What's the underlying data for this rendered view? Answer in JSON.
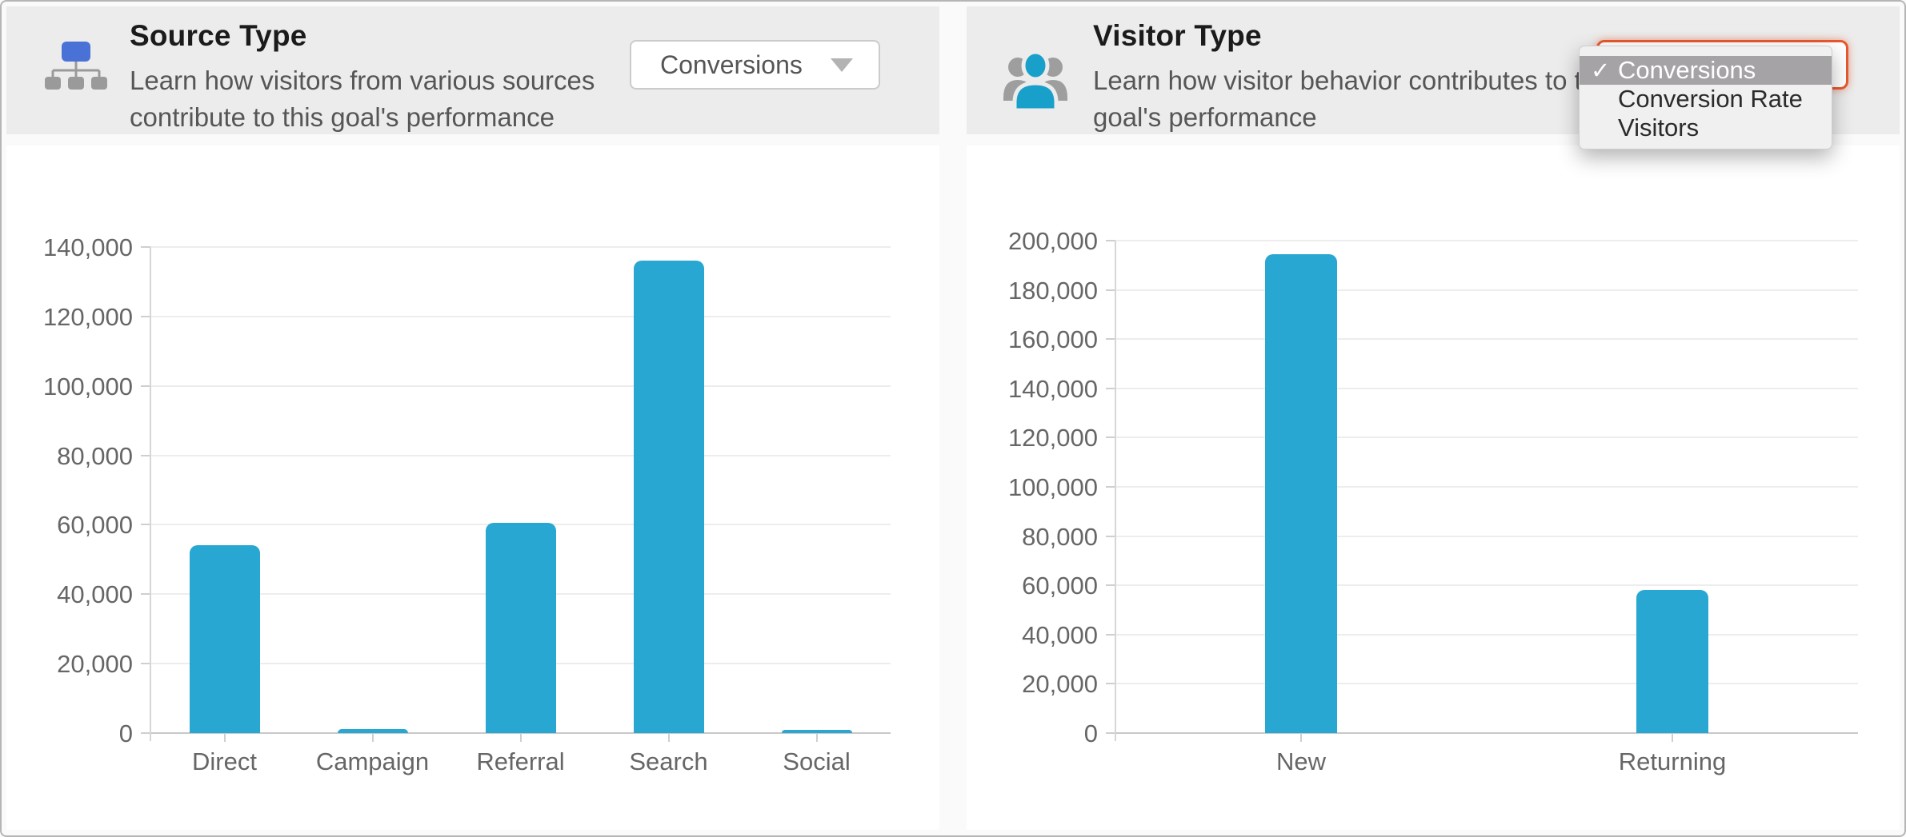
{
  "window": {
    "background": "#fafafa",
    "border_color": "#b5b5b5"
  },
  "colors": {
    "bar": "#27a7d2",
    "header_bg": "#ececec",
    "card_bg": "#ffffff",
    "accent_focus_orange": "#e7592e",
    "menu_highlight": "#a5a3a6",
    "sitemap_icon_blue": "#4a72d6",
    "people_icon_blue": "#18a0cb",
    "icon_gray": "#9a9a9a"
  },
  "panels": {
    "source": {
      "title": "Source Type",
      "description_line1": "Learn how visitors from various sources",
      "description_line2": "contribute to this goal's performance",
      "icon": "sitemap-icon",
      "dropdown": {
        "value": "Conversions",
        "open": false
      }
    },
    "visitor": {
      "title": "Visitor Type",
      "description_line1": "Learn how visitor behavior contributes to this",
      "description_line2": "goal's performance",
      "icon": "visitors-icon",
      "dropdown": {
        "value": "Conversions",
        "open": true,
        "checkmark": "✓",
        "options": [
          {
            "label": "Conversions",
            "selected": true
          },
          {
            "label": "Conversion Rate",
            "selected": false
          },
          {
            "label": "Visitors",
            "selected": false
          }
        ]
      }
    }
  },
  "chart_data": [
    {
      "type": "bar",
      "title": "Source Type",
      "metric": "Conversions",
      "categories": [
        "Direct",
        "Campaign",
        "Referral",
        "Search",
        "Social"
      ],
      "values": [
        54000,
        1100,
        60500,
        136000,
        700
      ],
      "ylim": [
        0,
        140000
      ],
      "ytick_step": 20000,
      "yticks": [
        "0",
        "20,000",
        "40,000",
        "60,000",
        "80,000",
        "100,000",
        "120,000",
        "140,000"
      ],
      "xlabel": "",
      "ylabel": "",
      "grid": true,
      "legend": "none",
      "bar_color": "#27a7d2"
    },
    {
      "type": "bar",
      "title": "Visitor Type",
      "metric": "Conversions",
      "categories": [
        "New",
        "Returning"
      ],
      "values": [
        194500,
        58000
      ],
      "ylim": [
        0,
        200000
      ],
      "ytick_step": 20000,
      "yticks": [
        "0",
        "20,000",
        "40,000",
        "60,000",
        "80,000",
        "100,000",
        "120,000",
        "140,000",
        "160,000",
        "180,000",
        "200,000"
      ],
      "xlabel": "",
      "ylabel": "",
      "grid": true,
      "legend": "none",
      "bar_color": "#27a7d2"
    }
  ]
}
